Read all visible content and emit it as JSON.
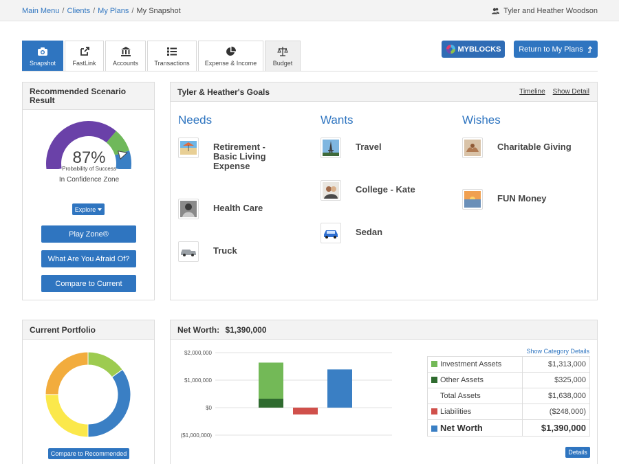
{
  "breadcrumb": {
    "items": [
      "Main Menu",
      "Clients",
      "My Plans"
    ],
    "current": "My Snapshot"
  },
  "user": {
    "name": "Tyler and Heather Woodson"
  },
  "tabs": [
    {
      "label": "Snapshot",
      "icon": "camera-icon",
      "active": true
    },
    {
      "label": "FastLink",
      "icon": "external-link-icon"
    },
    {
      "label": "Accounts",
      "icon": "bank-icon"
    },
    {
      "label": "Transactions",
      "icon": "list-icon"
    },
    {
      "label": "Expense & Income",
      "icon": "pie-chart-icon"
    },
    {
      "label": "Budget",
      "icon": "scale-icon"
    }
  ],
  "toolbar": {
    "myblocks_label": "MYBLOCKS",
    "return_label": "Return to My Plans"
  },
  "scenario": {
    "title": "Recommended Scenario Result",
    "percent": "87%",
    "percent_value": 87,
    "percent_label": "Probability of Success",
    "zone_label": "In Confidence Zone",
    "explore_label": "Explore",
    "buttons": [
      "Play Zone®",
      "What Are You Afraid Of?",
      "Compare to Current"
    ]
  },
  "goals": {
    "title": "Tyler & Heather's Goals",
    "links": [
      "Timeline",
      "Show Detail"
    ],
    "columns": [
      {
        "title": "Needs",
        "items": [
          "Retirement - Basic Living Expense",
          "Health Care",
          "Truck"
        ]
      },
      {
        "title": "Wants",
        "items": [
          "Travel",
          "College - Kate",
          "Sedan"
        ]
      },
      {
        "title": "Wishes",
        "items": [
          "Charitable Giving",
          "FUN Money"
        ]
      }
    ]
  },
  "portfolio": {
    "title": "Current Portfolio",
    "compare_label": "Compare to Recommended",
    "slices": [
      {
        "color": "#9dcb50",
        "value": 15
      },
      {
        "color": "#3a7fc4",
        "value": 35
      },
      {
        "color": "#fbe84b",
        "value": 25
      },
      {
        "color": "#f2ac3d",
        "value": 25
      }
    ]
  },
  "networth": {
    "title": "Net Worth:",
    "amount": "$1,390,000",
    "show_category_label": "Show Category Details",
    "rows": [
      {
        "label": "Investment Assets",
        "value": "$1,313,000",
        "color": "#73b957"
      },
      {
        "label": "Other Assets",
        "value": "$325,000",
        "color": "#2f6b2f"
      },
      {
        "label": "Total Assets",
        "value": "$1,638,000",
        "color": ""
      },
      {
        "label": "Liabilities",
        "value": "($248,000)",
        "color": "#d0504b"
      },
      {
        "label": "Net Worth",
        "value": "$1,390,000",
        "color": "#3a7fc4"
      }
    ],
    "details_label": "Details"
  },
  "chart_data": {
    "type": "bar",
    "y_ticks": [
      "$2,000,000",
      "$1,000,000",
      "$0",
      "($1,000,000)"
    ],
    "y_tick_values": [
      2000000,
      1000000,
      0,
      -1000000
    ],
    "ylim": [
      -1000000,
      2000000
    ],
    "series": [
      {
        "category": "Assets",
        "stack": [
          {
            "label": "Other Assets",
            "value": 325000,
            "color": "#2f6b2f"
          },
          {
            "label": "Investment Assets",
            "value": 1313000,
            "color": "#73b957"
          }
        ]
      },
      {
        "category": "Liabilities",
        "stack": [
          {
            "label": "Liabilities",
            "value": -248000,
            "color": "#d0504b"
          }
        ]
      },
      {
        "category": "Net Worth",
        "stack": [
          {
            "label": "Net Worth",
            "value": 1390000,
            "color": "#3a7fc4"
          }
        ]
      }
    ]
  }
}
